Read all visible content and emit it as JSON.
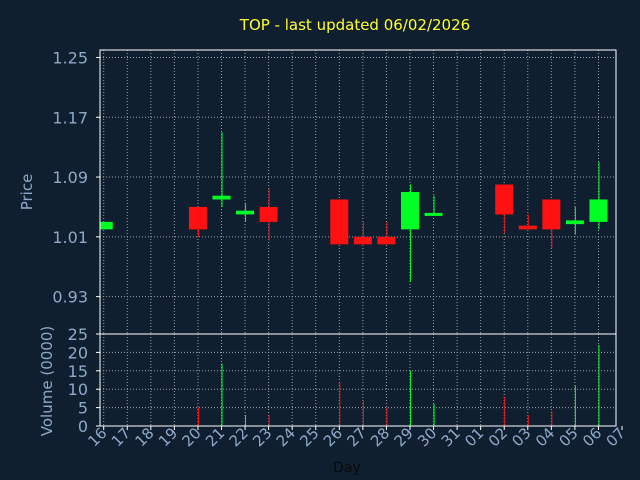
{
  "chart_data": {
    "type": "candlestick",
    "title": "TOP - last updated 06/02/2026",
    "xlabel": "Day",
    "ylabel": "Price",
    "volume_ylabel": "Volume (0000)",
    "grid": true,
    "colors": {
      "background": "#0f1f30",
      "title": "#ffff33",
      "text": "#8fa9c8",
      "axis": "#ffffff",
      "grid": "#a0a0a0",
      "up": "#00ff22",
      "down": "#ff1111"
    },
    "price_axis": {
      "ylim": [
        0.88,
        1.26
      ],
      "ticks": [
        "1.25",
        "1.17",
        "1.09",
        "1.01",
        "0.93"
      ],
      "tick_values": [
        1.25,
        1.17,
        1.09,
        1.01,
        0.93
      ]
    },
    "volume_axis": {
      "ylim": [
        0,
        25
      ],
      "ticks": [
        "25",
        "20",
        "15",
        "10",
        "5",
        "0"
      ],
      "tick_values": [
        25,
        20,
        15,
        10,
        5,
        0
      ]
    },
    "x_ticks": [
      "16",
      "17",
      "18",
      "19",
      "20",
      "21",
      "22",
      "23",
      "24",
      "25",
      "26",
      "27",
      "28",
      "29",
      "30",
      "31",
      "01",
      "02",
      "03",
      "04",
      "05",
      "06",
      "07"
    ],
    "candles": [
      {
        "i": 0,
        "open": 1.02,
        "close": 1.03,
        "high": 1.03,
        "low": 1.02,
        "volume": 0
      },
      {
        "i": 4,
        "open": 1.05,
        "close": 1.02,
        "high": 1.05,
        "low": 1.01,
        "volume": 5
      },
      {
        "i": 5,
        "open": 1.06,
        "close": 1.065,
        "high": 1.15,
        "low": 1.05,
        "volume": 17
      },
      {
        "i": 6,
        "open": 1.04,
        "close": 1.045,
        "high": 1.055,
        "low": 1.03,
        "volume": 3
      },
      {
        "i": 7,
        "open": 1.05,
        "close": 1.03,
        "high": 1.075,
        "low": 1.005,
        "volume": 3
      },
      {
        "i": 10,
        "open": 1.06,
        "close": 1.0,
        "high": 1.06,
        "low": 1.0,
        "volume": 12
      },
      {
        "i": 11,
        "open": 1.01,
        "close": 1.0,
        "high": 1.03,
        "low": 1.0,
        "volume": 7
      },
      {
        "i": 12,
        "open": 1.01,
        "close": 1.0,
        "high": 1.03,
        "low": 1.0,
        "volume": 5
      },
      {
        "i": 13,
        "open": 1.02,
        "close": 1.07,
        "high": 1.08,
        "low": 0.95,
        "volume": 15
      },
      {
        "i": 14,
        "open": 1.038,
        "close": 1.042,
        "high": 1.065,
        "low": 1.038,
        "volume": 6
      },
      {
        "i": 17,
        "open": 1.08,
        "close": 1.04,
        "high": 1.08,
        "low": 1.015,
        "volume": 8
      },
      {
        "i": 18,
        "open": 1.025,
        "close": 1.02,
        "high": 1.04,
        "low": 1.02,
        "volume": 3
      },
      {
        "i": 19,
        "open": 1.06,
        "close": 1.02,
        "high": 1.06,
        "low": 0.995,
        "volume": 4
      },
      {
        "i": 20,
        "open": 1.027,
        "close": 1.032,
        "high": 1.05,
        "low": 1.013,
        "volume": 11
      },
      {
        "i": 21,
        "open": 1.03,
        "close": 1.06,
        "high": 1.11,
        "low": 1.02,
        "volume": 22
      }
    ]
  }
}
